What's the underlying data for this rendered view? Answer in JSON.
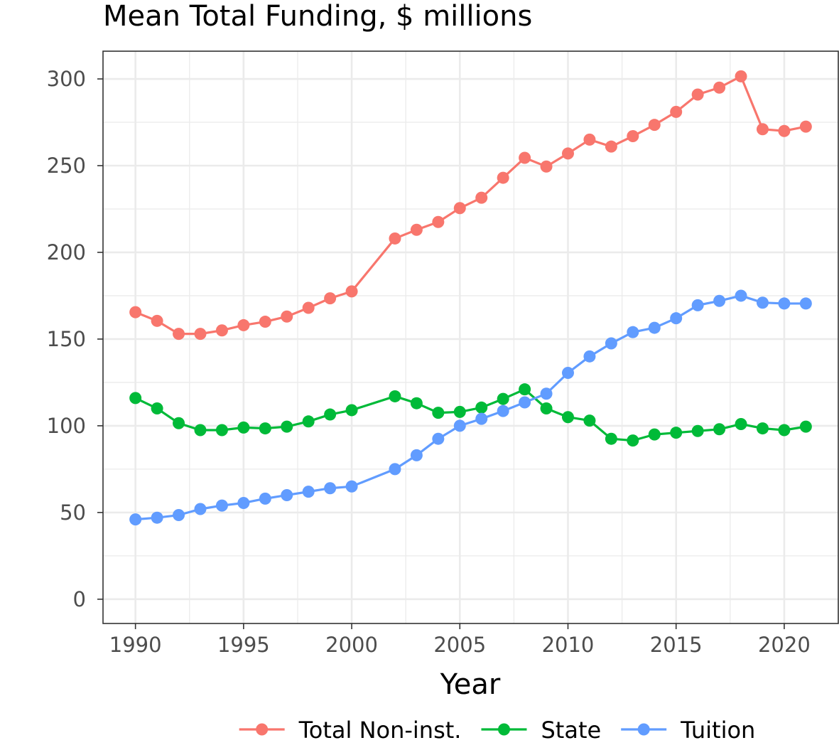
{
  "chart_data": {
    "type": "line",
    "title": "Mean Total Funding, $ millions",
    "xlabel": "Year",
    "ylabel": "",
    "xlim": [
      1988.5,
      2022.5
    ],
    "ylim": [
      -14,
      316
    ],
    "x_ticks": [
      1990,
      1995,
      2000,
      2005,
      2010,
      2015,
      2020
    ],
    "y_ticks": [
      0,
      50,
      100,
      150,
      200,
      250,
      300
    ],
    "grid": true,
    "legend_position": "bottom",
    "series": [
      {
        "name": "Total Non-inst.",
        "color": "#F8766D",
        "x": [
          1990,
          1991,
          1992,
          1993,
          1994,
          1995,
          1996,
          1997,
          1998,
          1999,
          2000,
          2002,
          2003,
          2004,
          2005,
          2006,
          2007,
          2008,
          2009,
          2010,
          2011,
          2012,
          2013,
          2014,
          2015,
          2016,
          2017,
          2018,
          2019,
          2020,
          2021
        ],
        "values": [
          165.5,
          160.5,
          153,
          153,
          155,
          158,
          160,
          163,
          168,
          173.5,
          177.5,
          208,
          213,
          217.5,
          225.5,
          231.5,
          243,
          254.5,
          249.5,
          257,
          265,
          261,
          267,
          273.5,
          281,
          291,
          295,
          301.5,
          271,
          270,
          272.5
        ]
      },
      {
        "name": "State",
        "color": "#00BA38",
        "x": [
          1990,
          1991,
          1992,
          1993,
          1994,
          1995,
          1996,
          1997,
          1998,
          1999,
          2000,
          2002,
          2003,
          2004,
          2005,
          2006,
          2007,
          2008,
          2009,
          2010,
          2011,
          2012,
          2013,
          2014,
          2015,
          2016,
          2017,
          2018,
          2019,
          2020,
          2021
        ],
        "values": [
          116,
          110,
          101.5,
          97.5,
          97.5,
          99,
          98.5,
          99.5,
          102.5,
          106.5,
          109,
          117,
          113,
          107.5,
          108,
          110.5,
          115.5,
          121,
          110,
          105,
          103,
          92.5,
          91.5,
          95,
          96,
          97,
          98,
          101,
          98.5,
          97.5,
          99.5
        ]
      },
      {
        "name": "Tuition",
        "color": "#619CFF",
        "x": [
          1990,
          1991,
          1992,
          1993,
          1994,
          1995,
          1996,
          1997,
          1998,
          1999,
          2000,
          2002,
          2003,
          2004,
          2005,
          2006,
          2007,
          2008,
          2009,
          2010,
          2011,
          2012,
          2013,
          2014,
          2015,
          2016,
          2017,
          2018,
          2019,
          2020,
          2021
        ],
        "values": [
          46,
          47,
          48.5,
          52,
          54,
          55.5,
          58,
          60,
          62,
          64,
          65,
          75,
          83,
          92.5,
          100,
          104,
          108.5,
          113.5,
          118.5,
          130.5,
          140,
          147.5,
          154,
          156.5,
          162,
          169.5,
          172,
          175,
          171,
          170.5,
          170.5
        ]
      }
    ]
  }
}
